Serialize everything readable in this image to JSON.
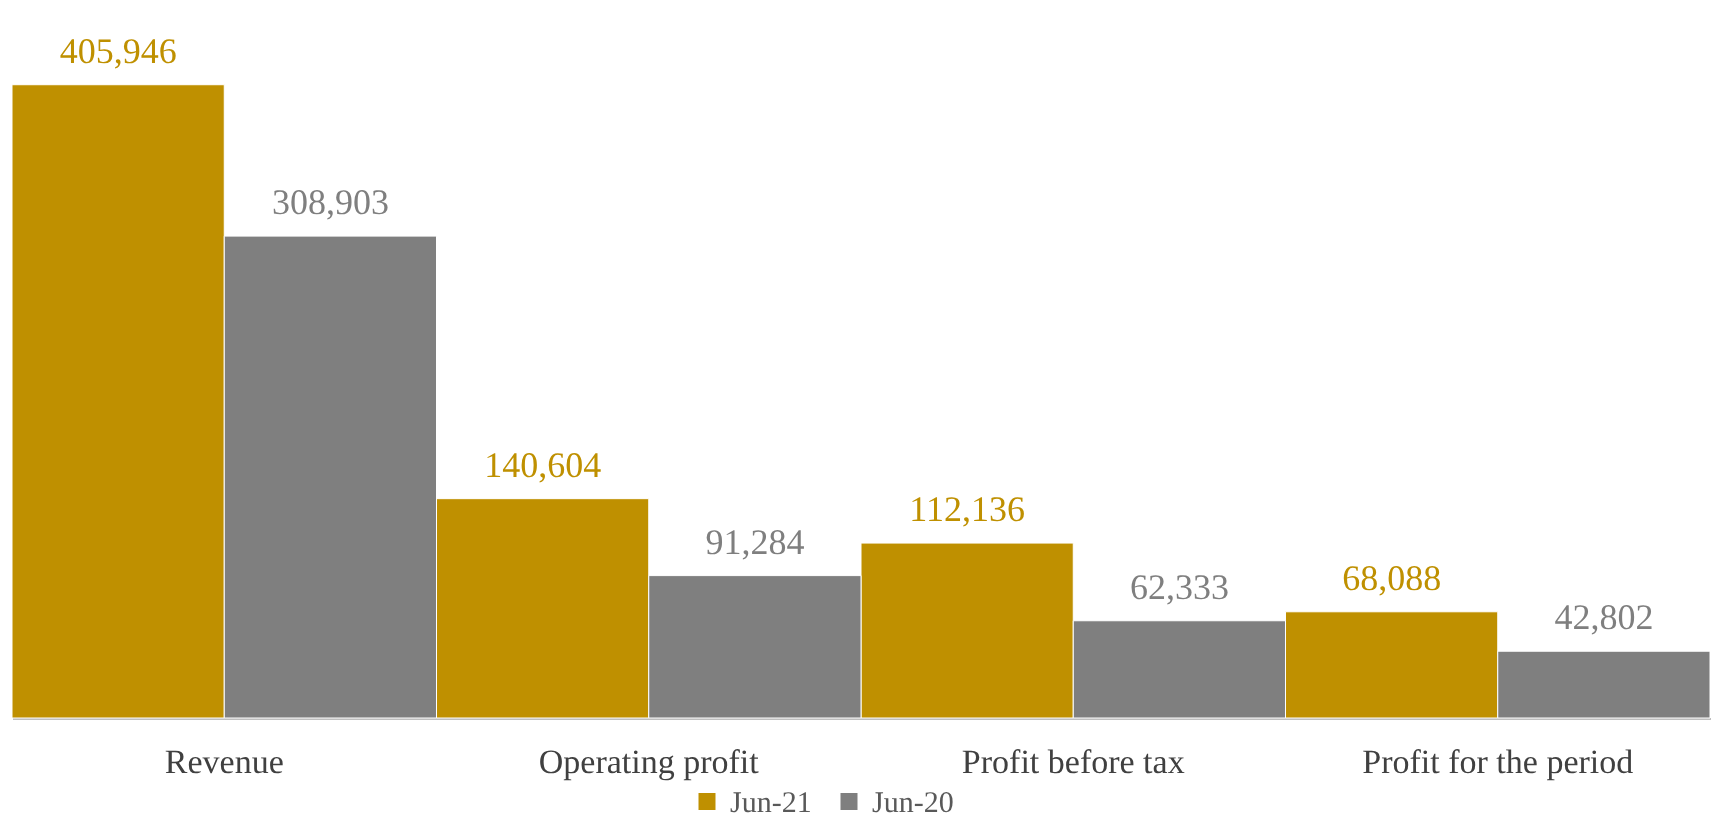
{
  "chart_data": {
    "type": "bar",
    "categories": [
      "Revenue",
      "Operating profit",
      "Profit before tax",
      "Profit for the period"
    ],
    "series": [
      {
        "name": "Jun-21",
        "color": "#bf9000",
        "values": [
          405946,
          140604,
          112136,
          68088
        ],
        "value_labels": [
          "405,946",
          "140,604",
          "112,136",
          "68,088"
        ]
      },
      {
        "name": "Jun-20",
        "color": "#7f7f7f",
        "values": [
          308903,
          91284,
          62333,
          42802
        ],
        "value_labels": [
          "308,903",
          "91,284",
          "62,333",
          "42,802"
        ]
      }
    ],
    "legend": "bottom"
  }
}
